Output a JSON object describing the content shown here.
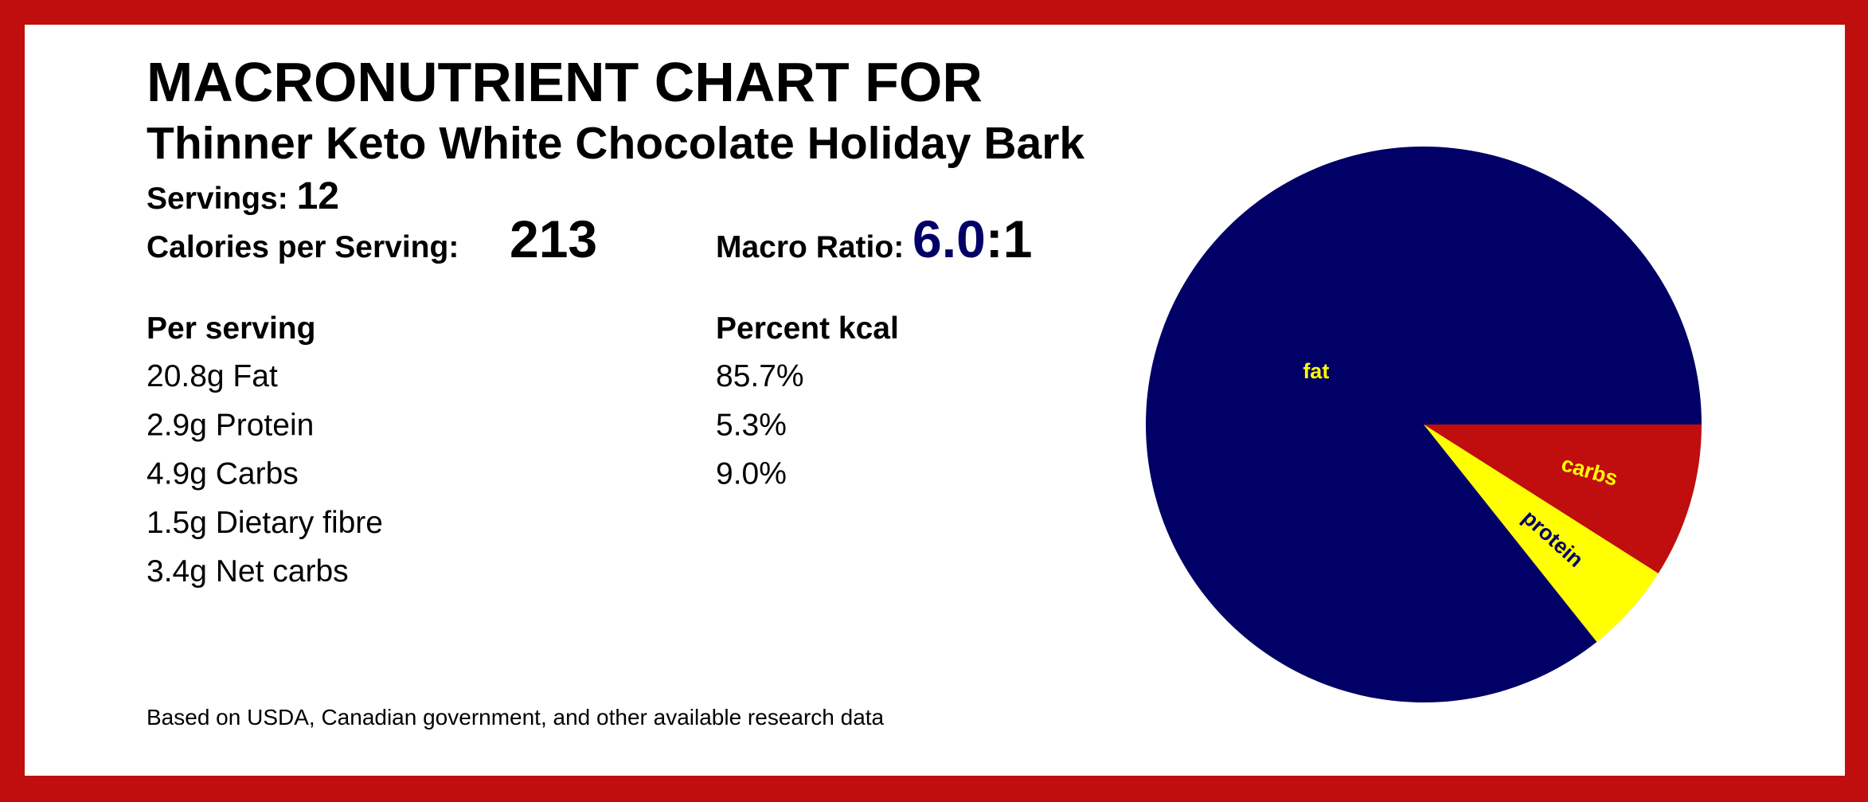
{
  "header": {
    "title": "MACRONUTRIENT CHART FOR",
    "subtitle": "Thinner Keto White Chocolate Holiday Bark",
    "servings_label": "Servings:",
    "servings": "12",
    "calories_label": "Calories per Serving:",
    "calories": "213",
    "ratio_label": "Macro Ratio:",
    "ratio": "6.0",
    "ratio_suffix": ":1"
  },
  "table": {
    "headers": [
      "Per serving",
      "Percent kcal"
    ],
    "per_serving": [
      "20.8g Fat",
      "2.9g Protein",
      "4.9g Carbs",
      "1.5g Dietary fibre",
      "3.4g Net carbs"
    ],
    "percent_kcal": [
      "85.7%",
      "5.3%",
      "9.0%"
    ]
  },
  "footer": "Based on USDA, Canadian government, and other available research data",
  "chart_data": {
    "type": "pie",
    "categories": [
      "carbs",
      "protein",
      "fat"
    ],
    "values": [
      9.0,
      5.3,
      85.7
    ],
    "colors": [
      "#c00d0d",
      "#ffff00",
      "#000066"
    ],
    "label_colors": [
      "#ffff00",
      "#000066",
      "#ffff00"
    ]
  }
}
